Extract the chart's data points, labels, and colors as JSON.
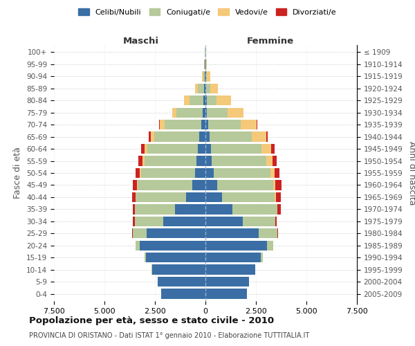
{
  "age_groups": [
    "0-4",
    "5-9",
    "10-14",
    "15-19",
    "20-24",
    "25-29",
    "30-34",
    "35-39",
    "40-44",
    "45-49",
    "50-54",
    "55-59",
    "60-64",
    "65-69",
    "70-74",
    "75-79",
    "80-84",
    "85-89",
    "90-94",
    "95-99",
    "100+"
  ],
  "birth_years": [
    "2005-2009",
    "2000-2004",
    "1995-1999",
    "1990-1994",
    "1985-1989",
    "1980-1984",
    "1975-1979",
    "1970-1974",
    "1965-1969",
    "1960-1964",
    "1955-1959",
    "1950-1954",
    "1945-1949",
    "1940-1944",
    "1935-1939",
    "1930-1934",
    "1925-1929",
    "1920-1924",
    "1915-1919",
    "1910-1914",
    "≤ 1909"
  ],
  "males": {
    "celibi": [
      2200,
      2350,
      2650,
      2950,
      3250,
      2900,
      2100,
      1500,
      950,
      650,
      500,
      430,
      380,
      320,
      210,
      130,
      100,
      60,
      30,
      20,
      10
    ],
    "coniugati": [
      0,
      0,
      20,
      50,
      200,
      700,
      1400,
      2000,
      2500,
      2700,
      2700,
      2600,
      2500,
      2200,
      1800,
      1300,
      700,
      300,
      80,
      30,
      10
    ],
    "vedovi": [
      0,
      0,
      0,
      0,
      0,
      5,
      10,
      10,
      20,
      30,
      60,
      80,
      150,
      200,
      250,
      200,
      250,
      150,
      50,
      10,
      5
    ],
    "divorziati": [
      0,
      0,
      0,
      0,
      10,
      30,
      80,
      100,
      150,
      200,
      200,
      200,
      150,
      80,
      50,
      20,
      10,
      0,
      0,
      0,
      0
    ]
  },
  "females": {
    "nubili": [
      2050,
      2150,
      2450,
      2750,
      3050,
      2650,
      1850,
      1350,
      830,
      570,
      420,
      320,
      270,
      200,
      130,
      80,
      60,
      30,
      20,
      15,
      10
    ],
    "coniugate": [
      0,
      0,
      20,
      80,
      300,
      900,
      1600,
      2200,
      2600,
      2800,
      2800,
      2700,
      2500,
      2100,
      1600,
      1000,
      500,
      200,
      60,
      20,
      5
    ],
    "vedove": [
      0,
      0,
      0,
      0,
      0,
      5,
      10,
      20,
      50,
      100,
      200,
      300,
      500,
      700,
      800,
      800,
      700,
      400,
      150,
      30,
      5
    ],
    "divorziate": [
      0,
      0,
      0,
      0,
      10,
      30,
      80,
      150,
      250,
      300,
      250,
      200,
      150,
      80,
      40,
      20,
      10,
      0,
      0,
      0,
      0
    ]
  },
  "colors": {
    "celibi": "#3a6ea5",
    "coniugati": "#b5c99a",
    "vedovi": "#f5c97a",
    "divorziati": "#cc2222"
  },
  "legend_labels": [
    "Celibi/Nubili",
    "Coniugati/e",
    "Vedovi/e",
    "Divorziati/e"
  ],
  "title": "Popolazione per età, sesso e stato civile - 2010",
  "subtitle": "PROVINCIA DI ORISTANO - Dati ISTAT 1° gennaio 2010 - Elaborazione TUTTITALIA.IT",
  "ylabel_left": "Fasce di età",
  "ylabel_right": "Anni di nascita",
  "header_left": "Maschi",
  "header_right": "Femmine",
  "xlim": 7500,
  "xtick_vals": [
    -7500,
    -5000,
    -2500,
    0,
    2500,
    5000,
    7500
  ],
  "xtick_labels": [
    "7.500",
    "5.000",
    "2.500",
    "0",
    "2.500",
    "5.000",
    "7.500"
  ]
}
